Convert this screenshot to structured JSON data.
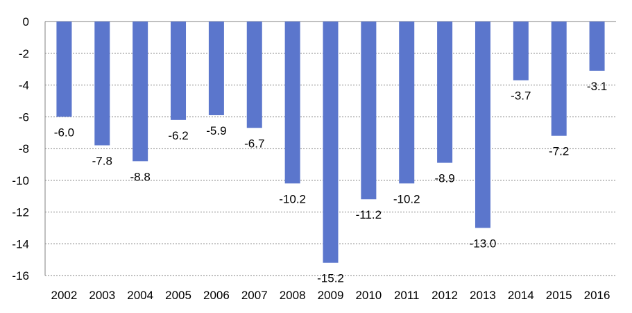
{
  "chart_data": {
    "type": "bar",
    "categories": [
      "2002",
      "2003",
      "2004",
      "2005",
      "2006",
      "2007",
      "2008",
      "2009",
      "2010",
      "2011",
      "2012",
      "2013",
      "2014",
      "2015",
      "2016"
    ],
    "values": [
      -6.0,
      -7.8,
      -8.8,
      -6.2,
      -5.9,
      -6.7,
      -10.2,
      -15.2,
      -11.2,
      -10.2,
      -8.9,
      -13.0,
      -3.7,
      -7.2,
      -3.1
    ],
    "data_labels": [
      "-6.0",
      "-7.8",
      "-8.8",
      "-6.2",
      "-5.9",
      "-6.7",
      "-10.2",
      "-15.2",
      "-11.2",
      "-10.2",
      "-8.9",
      "-13.0",
      "-3.7",
      "-7.2",
      "-3.1"
    ],
    "y_ticks": [
      "0",
      "-2",
      "-4",
      "-6",
      "-8",
      "-10",
      "-12",
      "-14",
      "-16"
    ],
    "y_tick_values": [
      0,
      -2,
      -4,
      -6,
      -8,
      -10,
      -12,
      -14,
      -16
    ],
    "ylim": [
      -16,
      0
    ],
    "title": "",
    "xlabel": "",
    "ylabel": "",
    "grid": true,
    "legend": "none",
    "bar_color": "#5B76CC",
    "grid_color": "#808080",
    "axis_color": "#808080"
  }
}
